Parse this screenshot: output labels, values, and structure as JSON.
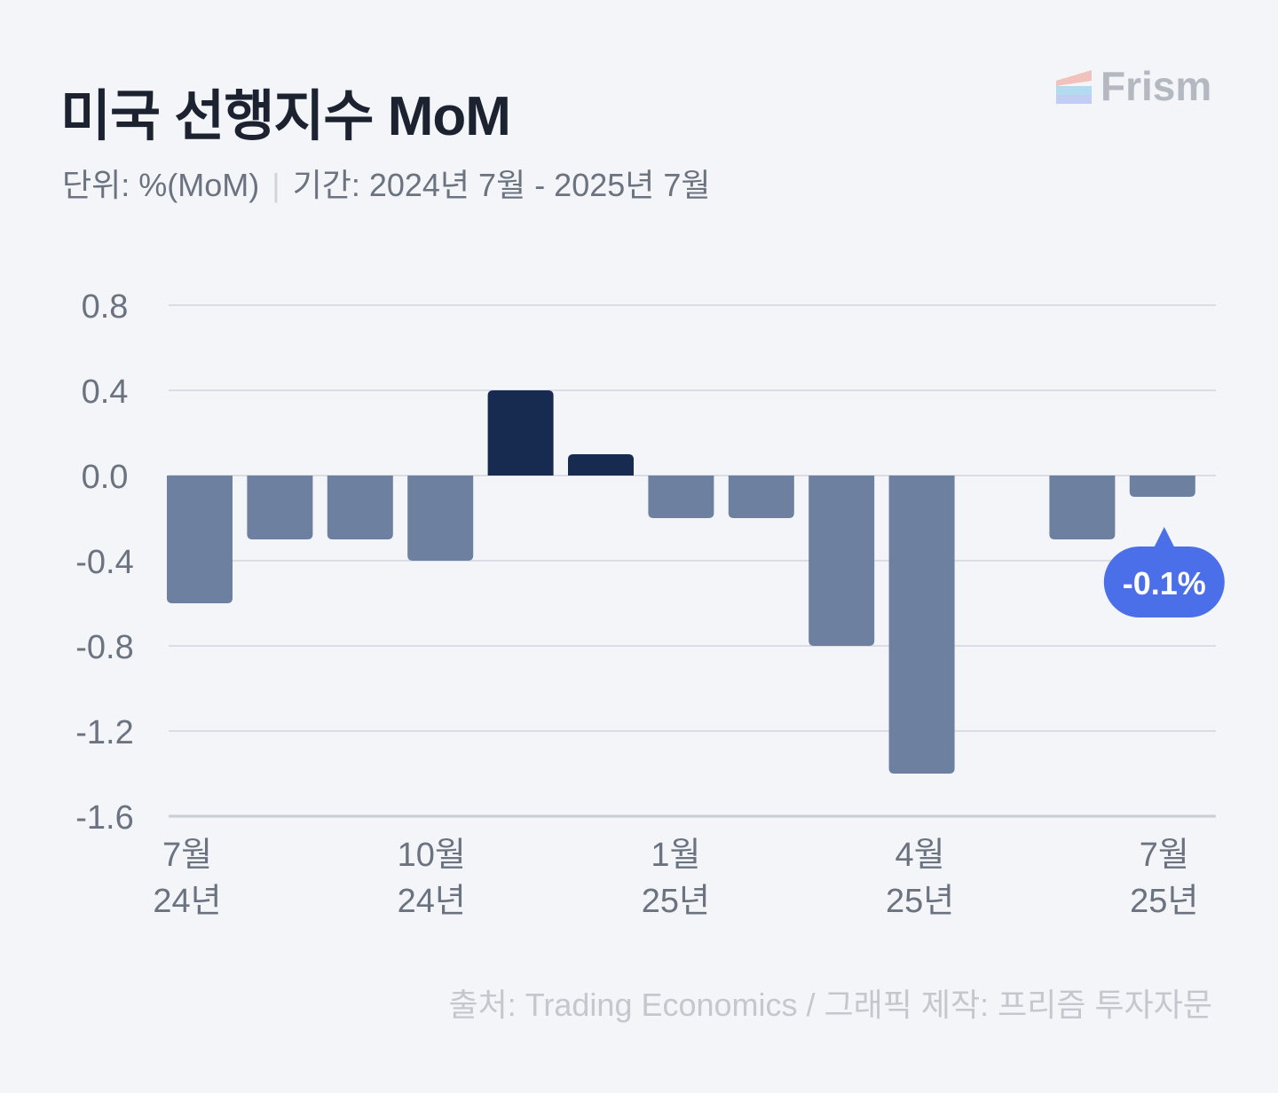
{
  "title": "미국 선행지수 MoM",
  "unit": "단위: %(MoM)",
  "period": "기간: 2024년 7월 - 2025년 7월",
  "logo": "Frism",
  "source": "출처: Trading Economics  / 그래픽 제작: 프리즘 투자자문",
  "colors": {
    "negative": "#6d809f",
    "positive": "#172a4f",
    "callout": "#4a6fe8",
    "grid": "#d9dde6"
  },
  "chart_data": {
    "type": "bar",
    "categories": [
      "2024-07",
      "2024-08",
      "2024-09",
      "2024-10",
      "2024-11",
      "2024-12",
      "2025-01",
      "2025-02",
      "2025-03",
      "2025-04",
      "2025-05",
      "2025-06",
      "2025-07"
    ],
    "values": [
      -0.6,
      -0.3,
      -0.3,
      -0.4,
      0.4,
      0.1,
      -0.2,
      -0.2,
      -0.8,
      -1.4,
      0.0,
      -0.3,
      -0.1
    ],
    "ylim": [
      -1.6,
      0.8
    ],
    "yticks": [
      "0.8",
      "0.4",
      "0.0",
      "-0.4",
      "-0.8",
      "-1.2",
      "-1.6"
    ],
    "xlabels": [
      {
        "index": 0,
        "month": "7월",
        "year": "24년"
      },
      {
        "index": 3,
        "month": "10월",
        "year": "24년"
      },
      {
        "index": 6,
        "month": "1월",
        "year": "25년"
      },
      {
        "index": 9,
        "month": "4월",
        "year": "25년"
      },
      {
        "index": 12,
        "month": "7월",
        "year": "25년"
      }
    ],
    "annotation": {
      "index": 12,
      "text": "-0.1%"
    },
    "grid": true
  }
}
